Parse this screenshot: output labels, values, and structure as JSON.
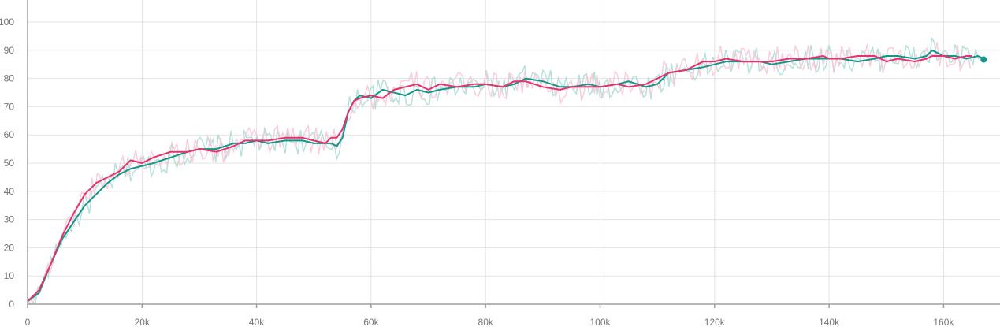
{
  "chart_data": {
    "type": "line",
    "title": "",
    "xlabel": "",
    "ylabel": "",
    "xlim": [
      0,
      170000
    ],
    "ylim": [
      0,
      100
    ],
    "x_ticks": [
      0,
      20000,
      40000,
      60000,
      80000,
      100000,
      120000,
      140000,
      160000
    ],
    "x_tick_labels": [
      "0",
      "20k",
      "40k",
      "60k",
      "80k",
      "100k",
      "120k",
      "140k",
      "160k"
    ],
    "y_ticks": [
      0,
      10,
      20,
      30,
      40,
      50,
      60,
      70,
      80,
      90,
      100
    ],
    "y_tick_labels": [
      "0",
      "10",
      "20",
      "30",
      "40",
      "50",
      "60",
      "70",
      "80",
      "90",
      "100"
    ],
    "grid": true,
    "legend": "none",
    "series": [
      {
        "color": "#12958a",
        "raw_color": "#a9dcd6",
        "end_marker": true,
        "x": [
          0,
          2000,
          4000,
          6000,
          8000,
          10000,
          12000,
          14000,
          16000,
          18000,
          20000,
          22000,
          25000,
          28000,
          30000,
          33000,
          36000,
          38000,
          40000,
          42000,
          45000,
          48000,
          50000,
          52000,
          53000,
          54000,
          55000,
          56000,
          57000,
          58000,
          60000,
          62000,
          64000,
          66000,
          68000,
          70000,
          72000,
          75000,
          78000,
          80000,
          83000,
          85000,
          87000,
          90000,
          93000,
          95000,
          98000,
          100000,
          103000,
          105000,
          108000,
          110000,
          112000,
          115000,
          118000,
          120000,
          122000,
          125000,
          128000,
          130000,
          133000,
          136000,
          139000,
          140000,
          142000,
          145000,
          148000,
          150000,
          152000,
          155000,
          157000,
          158000,
          160000,
          162000,
          164000,
          166000,
          167000
        ],
        "y": [
          1,
          4,
          14,
          23,
          29,
          35,
          39,
          43,
          46,
          48,
          49,
          50,
          52,
          54,
          55,
          55,
          57,
          57,
          58,
          57,
          58,
          58,
          57,
          57,
          57,
          56,
          59,
          68,
          72,
          74,
          73,
          76,
          75,
          74,
          76,
          75,
          76,
          77,
          77,
          78,
          77,
          78,
          80,
          79,
          77,
          77,
          78,
          77,
          78,
          79,
          77,
          78,
          82,
          83,
          84,
          85,
          86,
          86,
          86,
          85,
          86,
          87,
          87,
          87,
          87,
          86,
          87,
          88,
          88,
          87,
          88,
          90,
          88,
          88,
          87,
          88,
          87
        ]
      },
      {
        "color": "#e8316d",
        "raw_color": "#f7c6d6",
        "end_marker": false,
        "x": [
          0,
          2000,
          4000,
          6000,
          8000,
          10000,
          12000,
          14000,
          16000,
          18000,
          20000,
          22000,
          25000,
          28000,
          30000,
          33000,
          36000,
          38000,
          40000,
          42000,
          45000,
          48000,
          50000,
          52000,
          53000,
          54000,
          55000,
          56000,
          57000,
          58000,
          60000,
          62000,
          64000,
          66000,
          68000,
          70000,
          72000,
          75000,
          78000,
          80000,
          83000,
          85000,
          87000,
          90000,
          93000,
          95000,
          98000,
          100000,
          103000,
          105000,
          108000,
          110000,
          112000,
          115000,
          118000,
          120000,
          122000,
          125000,
          128000,
          130000,
          133000,
          136000,
          139000,
          140000,
          142000,
          145000,
          148000,
          150000,
          152000,
          155000,
          157000,
          158000,
          160000,
          162000,
          164000,
          165000
        ],
        "y": [
          1,
          5,
          14,
          24,
          32,
          39,
          43,
          45,
          47,
          51,
          50,
          52,
          54,
          54,
          55,
          54,
          56,
          58,
          58,
          58,
          59,
          59,
          58,
          57,
          59,
          59,
          62,
          68,
          72,
          73,
          74,
          73,
          76,
          77,
          78,
          76,
          78,
          77,
          78,
          78,
          77,
          79,
          79,
          77,
          76,
          77,
          77,
          77,
          78,
          77,
          78,
          80,
          82,
          83,
          86,
          86,
          87,
          86,
          86,
          86,
          87,
          87,
          88,
          87,
          87,
          88,
          88,
          86,
          87,
          86,
          87,
          88,
          88,
          87,
          88,
          88
        ]
      }
    ]
  }
}
